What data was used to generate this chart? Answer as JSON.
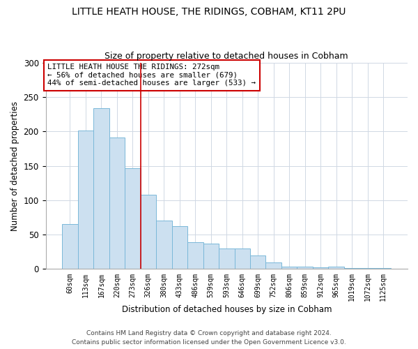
{
  "title1": "LITTLE HEATH HOUSE, THE RIDINGS, COBHAM, KT11 2PU",
  "title2": "Size of property relative to detached houses in Cobham",
  "xlabel": "Distribution of detached houses by size in Cobham",
  "ylabel": "Number of detached properties",
  "bar_labels": [
    "60sqm",
    "113sqm",
    "167sqm",
    "220sqm",
    "273sqm",
    "326sqm",
    "380sqm",
    "433sqm",
    "486sqm",
    "539sqm",
    "593sqm",
    "646sqm",
    "699sqm",
    "752sqm",
    "806sqm",
    "859sqm",
    "912sqm",
    "965sqm",
    "1019sqm",
    "1072sqm",
    "1125sqm"
  ],
  "bar_values": [
    65,
    201,
    234,
    191,
    146,
    108,
    70,
    62,
    39,
    37,
    30,
    30,
    20,
    10,
    4,
    4,
    2,
    3,
    1,
    1,
    1
  ],
  "bar_color": "#cce0f0",
  "bar_edge_color": "#7ab8d9",
  "vline_color": "#cc0000",
  "annotation_text": "LITTLE HEATH HOUSE THE RIDINGS: 272sqm\n← 56% of detached houses are smaller (679)\n44% of semi-detached houses are larger (533) →",
  "annotation_box_color": "#ffffff",
  "annotation_box_edge": "#cc0000",
  "ylim": [
    0,
    300
  ],
  "yticks": [
    0,
    50,
    100,
    150,
    200,
    250,
    300
  ],
  "footer1": "Contains HM Land Registry data © Crown copyright and database right 2024.",
  "footer2": "Contains public sector information licensed under the Open Government Licence v3.0."
}
